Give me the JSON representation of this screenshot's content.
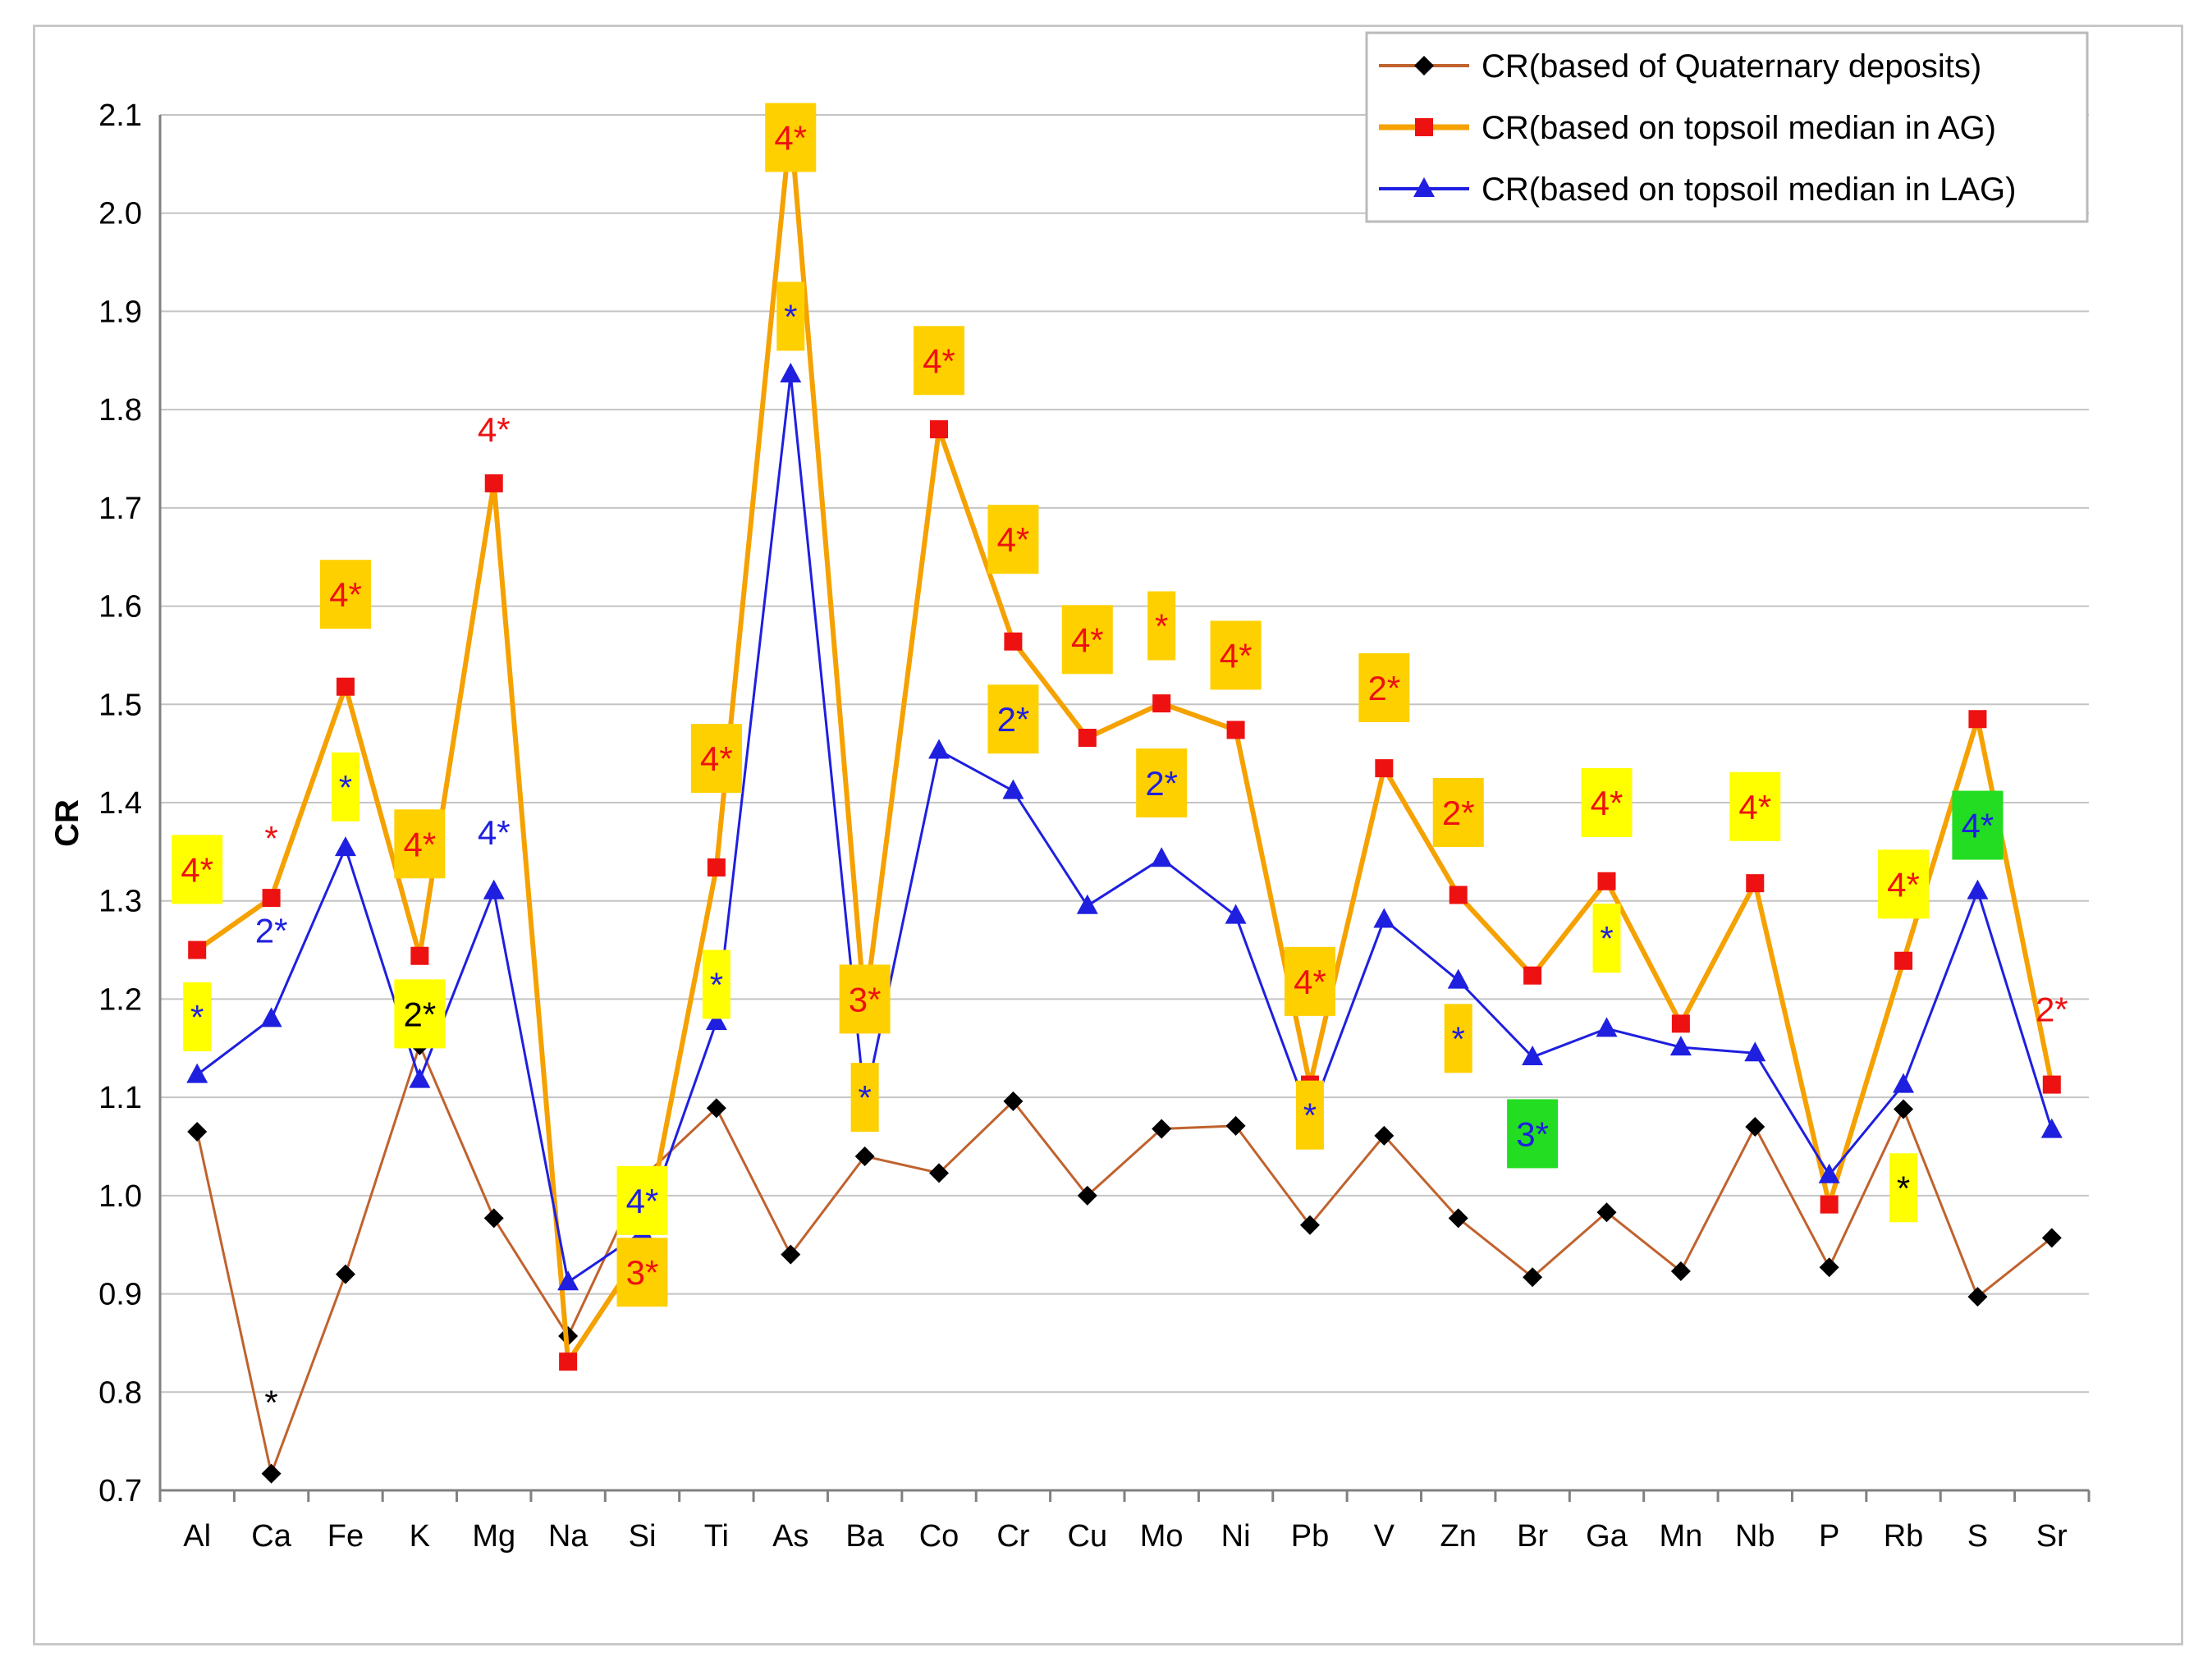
{
  "chart_data": {
    "type": "line",
    "title": "",
    "xlabel": "",
    "ylabel": "CR",
    "ylim": [
      0.7,
      2.1
    ],
    "yticks": [
      "0.7",
      "0.8",
      "0.9",
      "1.0",
      "1.1",
      "1.2",
      "1.3",
      "1.4",
      "1.5",
      "1.6",
      "1.7",
      "1.8",
      "1.9",
      "2.0",
      "2.1"
    ],
    "grid": "horizontal",
    "legend_position": "top-right",
    "categories": [
      "Al",
      "Ca",
      "Fe",
      "K",
      "Mg",
      "Na",
      "Si",
      "Ti",
      "As",
      "Ba",
      "Co",
      "Cr",
      "Cu",
      "Mo",
      "Ni",
      "Pb",
      "V",
      "Zn",
      "Br",
      "Ga",
      "Mn",
      "Nb",
      "P",
      "Rb",
      "S",
      "Sr"
    ],
    "series": [
      {
        "name": "CR(based of Quaternary deposits)",
        "color": "#c0622e",
        "marker_color": "#000000",
        "marker": "diamond",
        "values": [
          1.065,
          0.717,
          0.92,
          1.153,
          0.977,
          0.857,
          1.018,
          1.089,
          0.94,
          1.04,
          1.023,
          1.096,
          1.0,
          1.068,
          1.071,
          0.97,
          1.061,
          0.977,
          0.917,
          0.983,
          0.923,
          1.07,
          0.927,
          1.088,
          0.897,
          0.957
        ]
      },
      {
        "name": "CR(based on topsoil median in AG)",
        "color": "#f5a100",
        "marker_color": "#ee1111",
        "marker": "square",
        "values": [
          1.25,
          1.303,
          1.518,
          1.244,
          1.725,
          0.831,
          0.945,
          1.334,
          2.09,
          1.188,
          1.78,
          1.564,
          1.466,
          1.501,
          1.474,
          1.113,
          1.435,
          1.306,
          1.224,
          1.32,
          1.175,
          1.318,
          0.991,
          1.239,
          1.485,
          1.113
        ]
      },
      {
        "name": "CR(based on topsoil median in LAG)",
        "color": "#1f1fe0",
        "marker_color": "#1f1fe0",
        "marker": "triangle",
        "values": [
          1.123,
          1.18,
          1.354,
          1.118,
          1.31,
          0.912,
          0.963,
          1.177,
          1.836,
          1.094,
          1.453,
          1.412,
          1.295,
          1.343,
          1.285,
          1.08,
          1.281,
          1.219,
          1.141,
          1.17,
          1.151,
          1.145,
          1.021,
          1.113,
          1.31,
          1.067
        ]
      }
    ],
    "annotations": [
      {
        "text": "4*",
        "cat": 0,
        "y": 1.332,
        "color": "#ee1111",
        "bg": "#ffff00"
      },
      {
        "text": "*",
        "cat": 0,
        "y": 1.182,
        "color": "#1f1fe0",
        "bg": "#ffff00"
      },
      {
        "text": "*",
        "cat": 1,
        "y": 1.364,
        "color": "#ee1111",
        "bg": ""
      },
      {
        "text": "2*",
        "cat": 1,
        "y": 1.27,
        "color": "#1f1fe0",
        "bg": ""
      },
      {
        "text": "*",
        "cat": 1,
        "y": 0.79,
        "color": "#000000",
        "bg": ""
      },
      {
        "text": "4*",
        "cat": 2,
        "y": 1.612,
        "color": "#ee1111",
        "bg": "#ffd000"
      },
      {
        "text": "*",
        "cat": 2,
        "y": 1.416,
        "color": "#1f1fe0",
        "bg": "#ffff00"
      },
      {
        "text": "4*",
        "cat": 3,
        "y": 1.358,
        "color": "#ee1111",
        "bg": "#ffd000"
      },
      {
        "text": "2*",
        "cat": 3,
        "y": 1.185,
        "color": "#000000",
        "bg": "#ffff00"
      },
      {
        "text": "4*",
        "cat": 4,
        "y": 1.78,
        "color": "#ee1111",
        "bg": ""
      },
      {
        "text": "4*",
        "cat": 4,
        "y": 1.37,
        "color": "#1f1fe0",
        "bg": ""
      },
      {
        "text": "4*",
        "cat": 7,
        "y": 1.445,
        "color": "#ee1111",
        "bg": "#ffd000"
      },
      {
        "text": "*",
        "cat": 7,
        "y": 1.215,
        "color": "#1f1fe0",
        "bg": "#ffff00"
      },
      {
        "text": "4*",
        "cat": 6,
        "y": 0.995,
        "color": "#1f1fe0",
        "bg": "#ffff00"
      },
      {
        "text": "3*",
        "cat": 6,
        "y": 0.922,
        "color": "#ee1111",
        "bg": "#ffd000"
      },
      {
        "text": "4*",
        "cat": 8,
        "y": 2.077,
        "color": "#ee1111",
        "bg": "#ffd000"
      },
      {
        "text": "*",
        "cat": 8,
        "y": 1.895,
        "color": "#1f1fe0",
        "bg": "#ffd000"
      },
      {
        "text": "3*",
        "cat": 9,
        "y": 1.2,
        "color": "#ee1111",
        "bg": "#ffd000"
      },
      {
        "text": "*",
        "cat": 9,
        "y": 1.1,
        "color": "#1f1fe0",
        "bg": "#ffd000"
      },
      {
        "text": "4*",
        "cat": 10,
        "y": 1.85,
        "color": "#ee1111",
        "bg": "#ffd000"
      },
      {
        "text": "4*",
        "cat": 11,
        "y": 1.668,
        "color": "#ee1111",
        "bg": "#ffd000"
      },
      {
        "text": "2*",
        "cat": 11,
        "y": 1.485,
        "color": "#1f1fe0",
        "bg": "#ffd000"
      },
      {
        "text": "4*",
        "cat": 12,
        "y": 1.566,
        "color": "#ee1111",
        "bg": "#ffd000"
      },
      {
        "text": "*",
        "cat": 13,
        "y": 1.58,
        "color": "#ee1111",
        "bg": "#ffd000"
      },
      {
        "text": "2*",
        "cat": 13,
        "y": 1.42,
        "color": "#1f1fe0",
        "bg": "#ffd000"
      },
      {
        "text": "4*",
        "cat": 14,
        "y": 1.55,
        "color": "#ee1111",
        "bg": "#ffd000"
      },
      {
        "text": "4*",
        "cat": 15,
        "y": 1.218,
        "color": "#ee1111",
        "bg": "#ffd000"
      },
      {
        "text": "*",
        "cat": 15,
        "y": 1.082,
        "color": "#1f1fe0",
        "bg": "#ffd000"
      },
      {
        "text": "2*",
        "cat": 16,
        "y": 1.517,
        "color": "#ee1111",
        "bg": "#ffd000"
      },
      {
        "text": "2*",
        "cat": 17,
        "y": 1.39,
        "color": "#ee1111",
        "bg": "#ffd000"
      },
      {
        "text": "*",
        "cat": 17,
        "y": 1.16,
        "color": "#1f1fe0",
        "bg": "#ffd000"
      },
      {
        "text": "3*",
        "cat": 18,
        "y": 1.063,
        "color": "#1f1fe0",
        "bg": "#22dd22"
      },
      {
        "text": "4*",
        "cat": 19,
        "y": 1.4,
        "color": "#ee1111",
        "bg": "#ffff00"
      },
      {
        "text": "*",
        "cat": 19,
        "y": 1.262,
        "color": "#1f1fe0",
        "bg": "#ffff00"
      },
      {
        "text": "4*",
        "cat": 21,
        "y": 1.396,
        "color": "#ee1111",
        "bg": "#ffff00"
      },
      {
        "text": "4*",
        "cat": 23,
        "y": 1.317,
        "color": "#ee1111",
        "bg": "#ffff00"
      },
      {
        "text": "*",
        "cat": 23,
        "y": 1.008,
        "color": "#000000",
        "bg": "#ffff00"
      },
      {
        "text": "4*",
        "cat": 24,
        "y": 1.377,
        "color": "#1f1fe0",
        "bg": "#22dd22"
      },
      {
        "text": "2*",
        "cat": 25,
        "y": 1.19,
        "color": "#ee1111",
        "bg": ""
      }
    ]
  }
}
